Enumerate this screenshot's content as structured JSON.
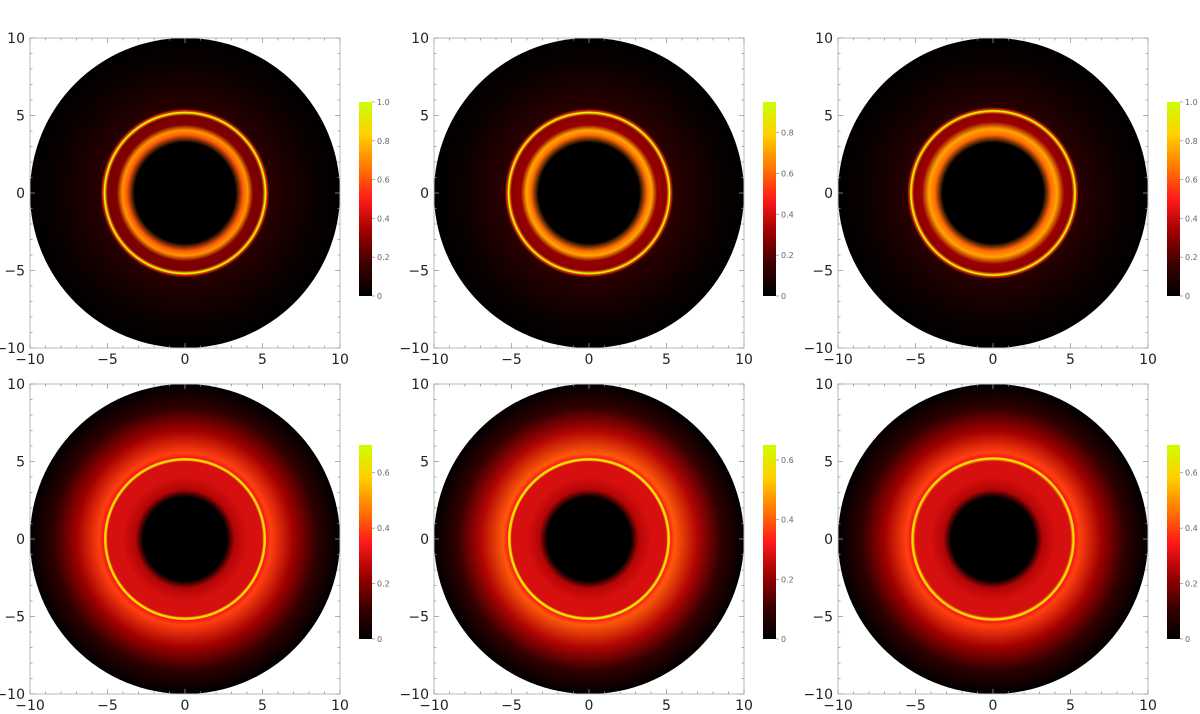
{
  "colors": {
    "colormap": [
      "#000000",
      "#3c0000",
      "#a00000",
      "#ff1a1a",
      "#ff7a00",
      "#ffd000",
      "#ccff00"
    ],
    "frame": "#b8b8b8",
    "disk_background": "#000000"
  },
  "chart_data": [
    {
      "type": "heatmap",
      "panel": "top-left",
      "xlim": [
        -10,
        10
      ],
      "ylim": [
        -10,
        10
      ],
      "x_ticks": [
        -10,
        -5,
        0,
        5,
        10
      ],
      "y_ticks": [
        -10,
        -5,
        0,
        5,
        10
      ],
      "x_tick_labels": [
        "−10",
        "−5",
        "0",
        "5",
        "10"
      ],
      "y_tick_labels": [
        "−10",
        "−5",
        "0",
        "5",
        "10"
      ],
      "disk_radius": 10,
      "shadow_radius": 3.75,
      "ring_radius": 5.2,
      "bright_band_inner": 3.75,
      "bright_band_outer": 4.4,
      "profile": {
        "band_peak": 0.72,
        "gap_level": 0.28,
        "ring_peak": 1.0,
        "outer_level": 0.05,
        "shadow_level": 0.0,
        "ring_width": 0.08
      },
      "colorbar": {
        "min": 0,
        "max": 1.0,
        "ticks": [
          "0",
          "0.2",
          "0.4",
          "0.6",
          "0.8",
          "1.0"
        ]
      }
    },
    {
      "type": "heatmap",
      "panel": "top-middle",
      "xlim": [
        -10,
        10
      ],
      "ylim": [
        -10,
        10
      ],
      "x_ticks": [
        -10,
        -5,
        0,
        5,
        10
      ],
      "y_ticks": [
        -10,
        -5,
        0,
        5,
        10
      ],
      "x_tick_labels": [
        "−10",
        "−5",
        "0",
        "5",
        "10"
      ],
      "y_tick_labels": [
        "−10",
        "−5",
        "0",
        "5",
        "10"
      ],
      "disk_radius": 10,
      "shadow_radius": 3.75,
      "ring_radius": 5.2,
      "bright_band_inner": 3.75,
      "bright_band_outer": 4.4,
      "profile": {
        "band_peak": 0.72,
        "gap_level": 0.3,
        "ring_peak": 0.95,
        "outer_level": 0.05,
        "shadow_level": 0.0,
        "ring_width": 0.08
      },
      "colorbar": {
        "min": 0,
        "max": 0.95,
        "ticks": [
          "0",
          "0.2",
          "0.4",
          "0.6",
          "0.8"
        ]
      }
    },
    {
      "type": "heatmap",
      "panel": "top-right",
      "xlim": [
        -10,
        10
      ],
      "ylim": [
        -10,
        10
      ],
      "x_ticks": [
        -10,
        -5,
        0,
        5,
        10
      ],
      "y_ticks": [
        -10,
        -5,
        0,
        5,
        10
      ],
      "x_tick_labels": [
        "−10",
        "−5",
        "0",
        "5",
        "10"
      ],
      "y_tick_labels": [
        "−10",
        "−5",
        "0",
        "5",
        "10"
      ],
      "disk_radius": 10,
      "shadow_radius": 3.75,
      "ring_radius": 5.3,
      "bright_band_inner": 3.75,
      "bright_band_outer": 4.6,
      "profile": {
        "band_peak": 0.75,
        "gap_level": 0.32,
        "ring_peak": 1.0,
        "outer_level": 0.05,
        "shadow_level": 0.0,
        "ring_width": 0.08
      },
      "colorbar": {
        "min": 0,
        "max": 1.0,
        "ticks": [
          "0",
          "0.2",
          "0.4",
          "0.6",
          "0.8",
          "1.0"
        ]
      }
    },
    {
      "type": "heatmap",
      "panel": "bottom-left",
      "xlim": [
        -10,
        10
      ],
      "ylim": [
        -10,
        10
      ],
      "x_ticks": [
        -10,
        -5,
        0,
        5,
        10
      ],
      "y_ticks": [
        -10,
        -5,
        0,
        5,
        10
      ],
      "x_tick_labels": [
        "−10",
        "−5",
        "0",
        "5",
        "10"
      ],
      "y_tick_labels": [
        "−10",
        "−5",
        "0",
        "5",
        "10"
      ],
      "disk_radius": 10,
      "shadow_radius": 3.2,
      "ring_radius": 5.15,
      "bright_band_inner": 3.2,
      "bright_band_outer": 5.0,
      "profile": {
        "band_peak": 0.3,
        "gap_level": 0.3,
        "ring_peak": 0.62,
        "outer_level": 0.18,
        "shadow_level": 0.0,
        "ring_width": 0.13
      },
      "colorbar": {
        "min": 0,
        "max": 0.7,
        "ticks": [
          "0",
          "0.2",
          "0.4",
          "0.6"
        ]
      }
    },
    {
      "type": "heatmap",
      "panel": "bottom-middle",
      "xlim": [
        -10,
        10
      ],
      "ylim": [
        -10,
        10
      ],
      "x_ticks": [
        -10,
        -5,
        0,
        5,
        10
      ],
      "y_ticks": [
        -10,
        -5,
        0,
        5,
        10
      ],
      "x_tick_labels": [
        "−10",
        "−5",
        "0",
        "5",
        "10"
      ],
      "y_tick_labels": [
        "−10",
        "−5",
        "0",
        "5",
        "10"
      ],
      "disk_radius": 10,
      "shadow_radius": 3.2,
      "ring_radius": 5.15,
      "bright_band_inner": 3.2,
      "bright_band_outer": 5.0,
      "profile": {
        "band_peak": 0.28,
        "gap_level": 0.28,
        "ring_peak": 0.6,
        "outer_level": 0.18,
        "shadow_level": 0.0,
        "ring_width": 0.13
      },
      "colorbar": {
        "min": 0,
        "max": 0.65,
        "ticks": [
          "0",
          "0.2",
          "0.4",
          "0.6"
        ]
      }
    },
    {
      "type": "heatmap",
      "panel": "bottom-right",
      "xlim": [
        -10,
        10
      ],
      "ylim": [
        -10,
        10
      ],
      "x_ticks": [
        -10,
        -5,
        0,
        5,
        10
      ],
      "y_ticks": [
        -10,
        -5,
        0,
        5,
        10
      ],
      "x_tick_labels": [
        "−10",
        "−5",
        "0",
        "5",
        "10"
      ],
      "y_tick_labels": [
        "−10",
        "−5",
        "0",
        "5",
        "10"
      ],
      "disk_radius": 10,
      "shadow_radius": 3.2,
      "ring_radius": 5.2,
      "bright_band_inner": 3.2,
      "bright_band_outer": 5.0,
      "profile": {
        "band_peak": 0.3,
        "gap_level": 0.3,
        "ring_peak": 0.62,
        "outer_level": 0.18,
        "shadow_level": 0.0,
        "ring_width": 0.13
      },
      "colorbar": {
        "min": 0,
        "max": 0.7,
        "ticks": [
          "0",
          "0.2",
          "0.4",
          "0.6"
        ]
      }
    }
  ]
}
